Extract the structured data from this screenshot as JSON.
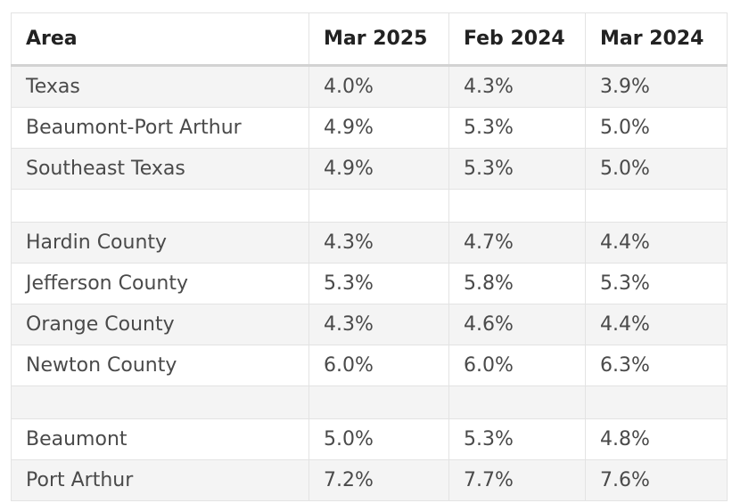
{
  "table": {
    "headers": [
      "Area",
      "Mar 2025",
      "Feb 2024",
      "Mar 2024"
    ],
    "rows": [
      {
        "area": "Texas",
        "mar2025": "4.0%",
        "feb2024": "4.3%",
        "mar2024": "3.9%"
      },
      {
        "area": "Beaumont-Port Arthur",
        "mar2025": "4.9%",
        "feb2024": "5.3%",
        "mar2024": "5.0%"
      },
      {
        "area": "Southeast Texas",
        "mar2025": "4.9%",
        "feb2024": "5.3%",
        "mar2024": "5.0%"
      },
      {
        "area": "",
        "mar2025": "",
        "feb2024": "",
        "mar2024": ""
      },
      {
        "area": "Hardin County",
        "mar2025": "4.3%",
        "feb2024": "4.7%",
        "mar2024": "4.4%"
      },
      {
        "area": "Jefferson County",
        "mar2025": "5.3%",
        "feb2024": "5.8%",
        "mar2024": "5.3%"
      },
      {
        "area": "Orange County",
        "mar2025": "4.3%",
        "feb2024": "4.6%",
        "mar2024": "4.4%"
      },
      {
        "area": "Newton County",
        "mar2025": "6.0%",
        "feb2024": "6.0%",
        "mar2024": "6.3%"
      },
      {
        "area": "",
        "mar2025": "",
        "feb2024": "",
        "mar2024": ""
      },
      {
        "area": "Beaumont",
        "mar2025": "5.0%",
        "feb2024": "5.3%",
        "mar2024": "4.8%"
      },
      {
        "area": "Port Arthur",
        "mar2025": "7.2%",
        "feb2024": "7.7%",
        "mar2024": "7.6%"
      }
    ]
  }
}
